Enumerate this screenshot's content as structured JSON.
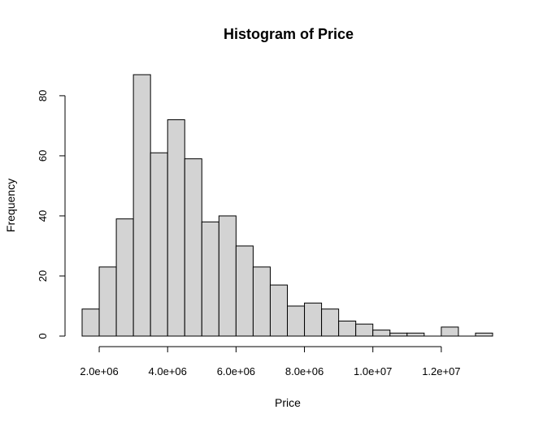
{
  "chart_data": {
    "type": "bar",
    "title": "Histogram of Price",
    "xlabel": "Price",
    "ylabel": "Frequency",
    "bin_width": 500000,
    "bins": [
      {
        "start": 1500000,
        "end": 2000000,
        "count": 9
      },
      {
        "start": 2000000,
        "end": 2500000,
        "count": 23
      },
      {
        "start": 2500000,
        "end": 3000000,
        "count": 39
      },
      {
        "start": 3000000,
        "end": 3500000,
        "count": 87
      },
      {
        "start": 3500000,
        "end": 4000000,
        "count": 61
      },
      {
        "start": 4000000,
        "end": 4500000,
        "count": 72
      },
      {
        "start": 4500000,
        "end": 5000000,
        "count": 59
      },
      {
        "start": 5000000,
        "end": 5500000,
        "count": 38
      },
      {
        "start": 5500000,
        "end": 6000000,
        "count": 40
      },
      {
        "start": 6000000,
        "end": 6500000,
        "count": 30
      },
      {
        "start": 6500000,
        "end": 7000000,
        "count": 23
      },
      {
        "start": 7000000,
        "end": 7500000,
        "count": 17
      },
      {
        "start": 7500000,
        "end": 8000000,
        "count": 10
      },
      {
        "start": 8000000,
        "end": 8500000,
        "count": 11
      },
      {
        "start": 8500000,
        "end": 9000000,
        "count": 9
      },
      {
        "start": 9000000,
        "end": 9500000,
        "count": 5
      },
      {
        "start": 9500000,
        "end": 10000000,
        "count": 4
      },
      {
        "start": 10000000,
        "end": 10500000,
        "count": 2
      },
      {
        "start": 10500000,
        "end": 11000000,
        "count": 1
      },
      {
        "start": 11000000,
        "end": 11500000,
        "count": 1
      },
      {
        "start": 11500000,
        "end": 12000000,
        "count": 0
      },
      {
        "start": 12000000,
        "end": 12500000,
        "count": 3
      },
      {
        "start": 12500000,
        "end": 13000000,
        "count": 0
      },
      {
        "start": 13000000,
        "end": 13500000,
        "count": 1
      }
    ],
    "x_ticks": [
      {
        "value": 2000000,
        "label": "2.0e+06"
      },
      {
        "value": 4000000,
        "label": "4.0e+06"
      },
      {
        "value": 6000000,
        "label": "6.0e+06"
      },
      {
        "value": 8000000,
        "label": "8.0e+06"
      },
      {
        "value": 10000000,
        "label": "1.0e+07"
      },
      {
        "value": 12000000,
        "label": "1.2e+07"
      }
    ],
    "y_ticks": [
      {
        "value": 0,
        "label": "0"
      },
      {
        "value": 20,
        "label": "20"
      },
      {
        "value": 40,
        "label": "40"
      },
      {
        "value": 60,
        "label": "60"
      },
      {
        "value": 80,
        "label": "80"
      }
    ],
    "xlim": [
      1500000,
      13500000
    ],
    "ylim": [
      0,
      87
    ],
    "grid": false,
    "colors": {
      "bar_fill": "#d3d3d3",
      "bar_stroke": "#000000"
    }
  }
}
